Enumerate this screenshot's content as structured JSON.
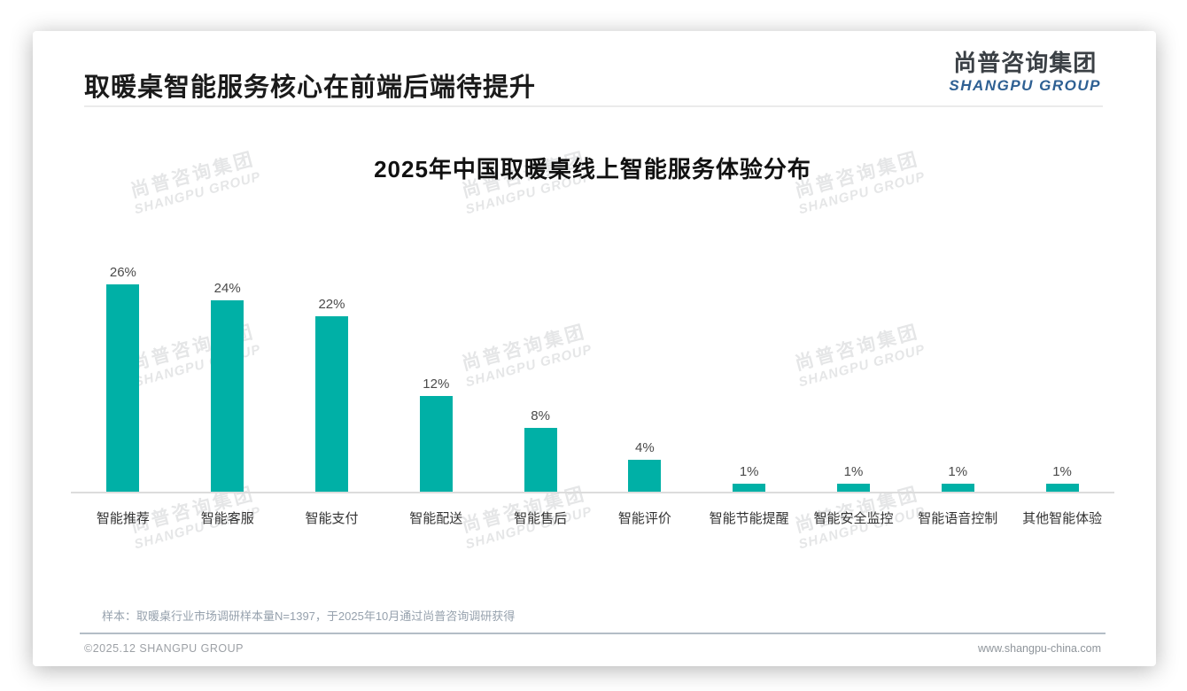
{
  "header": {
    "title": "取暖桌智能服务核心在前端后端待提升",
    "logo_cn": "尚普咨询集团",
    "logo_en": "SHANGPU GROUP"
  },
  "watermark": {
    "line1": "尚普咨询集团",
    "line2": "SHANGPU GROUP"
  },
  "chart_data": {
    "type": "bar",
    "title": "2025年中国取暖桌线上智能服务体验分布",
    "categories": [
      "智能推荐",
      "智能客服",
      "智能支付",
      "智能配送",
      "智能售后",
      "智能评价",
      "智能节能提醒",
      "智能安全监控",
      "智能语音控制",
      "其他智能体验"
    ],
    "values": [
      26,
      24,
      22,
      12,
      8,
      4,
      1,
      1,
      1,
      1
    ],
    "value_labels": [
      "26%",
      "24%",
      "22%",
      "12%",
      "8%",
      "4%",
      "1%",
      "1%",
      "1%",
      "1%"
    ],
    "bar_color": "#00b0a6",
    "xlabel": "",
    "ylabel": "",
    "ylim": [
      0,
      28
    ],
    "grid": false,
    "legend": false,
    "axis_line_color": "#dcdcdc"
  },
  "footnote": "样本：取暖桌行业市场调研样本量N=1397，于2025年10月通过尚普咨询调研获得",
  "footer": {
    "left": "©2025.12 SHANGPU GROUP",
    "right": "www.shangpu-china.com"
  },
  "colors": {
    "bar": "#00b0a6",
    "logo_blue": "#2e6093",
    "title_text": "#1b1b1b",
    "footnote_text": "#96a1ad",
    "footer_divider": "#b3bdc6"
  }
}
